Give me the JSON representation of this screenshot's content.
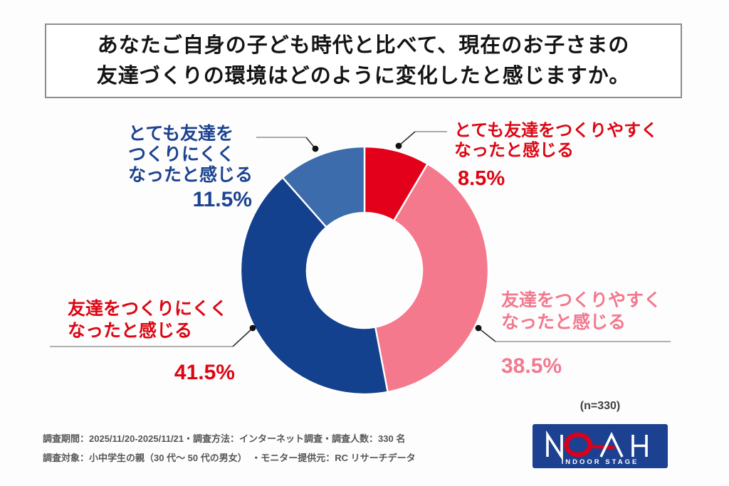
{
  "title": {
    "line1": "あなたご自身の子ども時代と比べて、現在のお子さまの",
    "line2": "友達づくりの環境はどのように変化したと感じますか。"
  },
  "sample_note": "(n=330)",
  "chart_data": {
    "type": "pie",
    "subtype": "donut",
    "title": "あなたご自身の子ども時代と比べて、現在のお子さまの友達づくりの環境はどのように変化したと感じますか。",
    "start_angle_deg": 0,
    "direction": "clockwise",
    "categories": [
      "とても友達をつくりやすくなったと感じる",
      "友達をつくりやすくなったと感じる",
      "友達をつくりにくくなったと感じる",
      "とても友達をつくりにくくなったと感じる"
    ],
    "values": [
      8.5,
      38.5,
      41.5,
      11.5
    ],
    "unit": "%",
    "sample_size": 330,
    "segments": [
      {
        "label": "とても友達をつくりやすくなったと感じる",
        "label_lines": [
          "とても友達をつくりやすく",
          "なったと感じる"
        ],
        "value": 8.5,
        "percent_label": "8.5%",
        "color": "#e3001b",
        "label_color": "#dc0613"
      },
      {
        "label": "友達をつくりやすくなったと感じる",
        "label_lines": [
          "友達をつくりやすく",
          "なったと感じる"
        ],
        "value": 38.5,
        "percent_label": "38.5%",
        "color": "#f5798d",
        "label_color": "#f2798f"
      },
      {
        "label": "友達をつくりにくくなったと感じる",
        "label_lines": [
          "友達をつくりにくく",
          "なったと感じる"
        ],
        "value": 41.5,
        "percent_label": "41.5%",
        "color": "#14418e",
        "label_color": "#dc0613"
      },
      {
        "label": "とても友達をつくりにくくなったと感じる",
        "label_lines": [
          "とても友達を",
          "つくりにくく",
          "なったと感じる"
        ],
        "value": 11.5,
        "percent_label": "11.5%",
        "color": "#3c6cab",
        "label_color": "#1c4390"
      }
    ]
  },
  "footer": {
    "line1": "調査期間：2025/11/20-2025/11/21・調査方法：インターネット調査・調査人数：330 名",
    "line2": "調査対象：小中学生の親（30 代〜 50 代の男女）　・モニター提供元：RC リサーチデータ"
  },
  "logo": {
    "brand": "NOAH",
    "tagline": "INDOOR STAGE",
    "bg_color": "#1c4191",
    "accent_color": "#d8001c"
  }
}
